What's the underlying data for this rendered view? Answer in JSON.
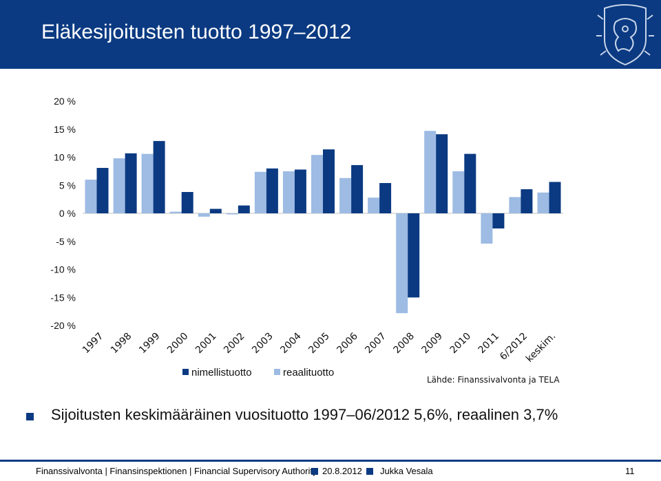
{
  "header": {
    "title": "Eläkesijoitusten tuotto 1997–2012"
  },
  "colors": {
    "title_bar": "#0b3a82",
    "nominal": "#0b3a82",
    "real": "#9dbbe3"
  },
  "chart_data": {
    "type": "bar",
    "categories": [
      "1997",
      "1998",
      "1999",
      "2000",
      "2001",
      "2002",
      "2003",
      "2004",
      "2005",
      "2006",
      "2007",
      "2008",
      "2009",
      "2010",
      "2011",
      "6/2012",
      "keskim."
    ],
    "series": [
      {
        "name": "nimellistuotto",
        "values": [
          8.1,
          10.7,
          12.9,
          3.8,
          0.8,
          1.4,
          8.0,
          7.8,
          11.4,
          8.6,
          5.4,
          -15.0,
          14.1,
          10.6,
          -2.7,
          4.3,
          5.6
        ]
      },
      {
        "name": "reaalituotto",
        "values": [
          6.0,
          9.8,
          10.6,
          0.3,
          -0.6,
          -0.2,
          7.4,
          7.5,
          10.4,
          6.3,
          2.8,
          -17.8,
          14.7,
          7.5,
          -5.4,
          2.9,
          3.7
        ]
      }
    ],
    "y_tick_labels": [
      "20 %",
      "15 %",
      "10 %",
      "5 %",
      "0 %",
      "-5 %",
      "-10 %",
      "-15 %",
      "-20 %"
    ],
    "y_ticks": [
      20,
      15,
      10,
      5,
      0,
      -5,
      -10,
      -15,
      -20
    ],
    "ylim": [
      -20,
      20
    ],
    "legend": [
      "nimellistuotto",
      "reaalituotto"
    ],
    "source": "Lähde: Finanssivalvonta ja TELA",
    "title": "",
    "xlabel": "",
    "ylabel": ""
  },
  "bullet": {
    "text": "Sijoitusten keskimääräinen vuosituotto 1997–06/2012 5,6%, reaalinen 3,7%"
  },
  "footer": {
    "org": "Finanssivalvonta | Finansinspektionen | Financial Supervisory Authority",
    "date": "20.8.2012",
    "author": "Jukka Vesala",
    "page": "11"
  }
}
